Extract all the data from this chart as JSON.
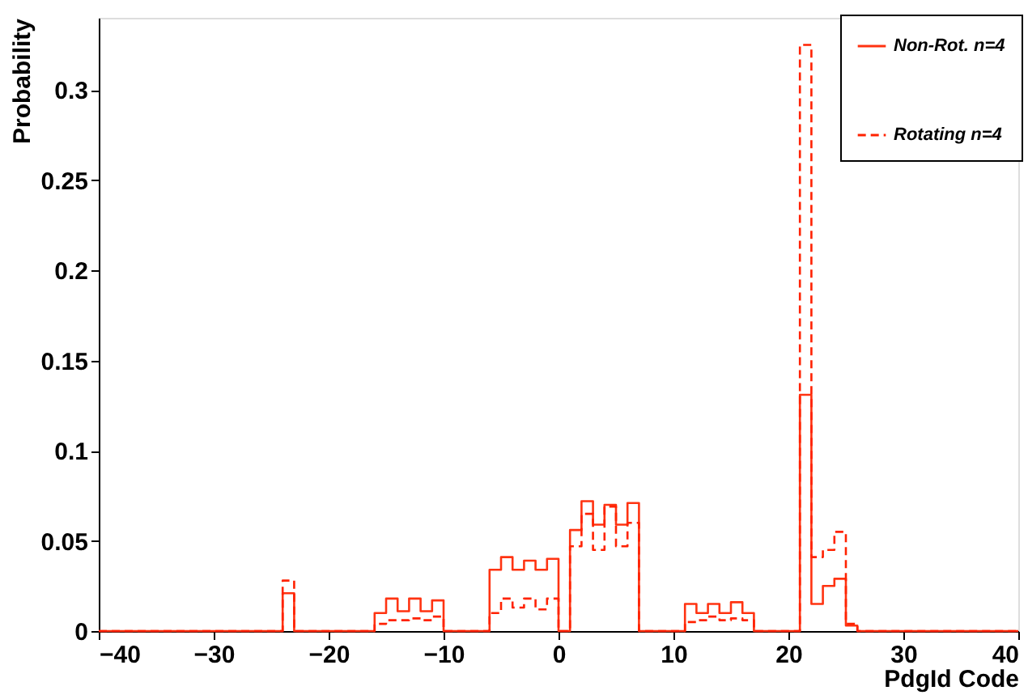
{
  "chart_data": {
    "type": "histogram",
    "xlabel": "PdgId Code",
    "ylabel": "Probability",
    "bins": [
      -40,
      -39,
      -38,
      -37,
      -36,
      -35,
      -34,
      -33,
      -32,
      -31,
      -30,
      -29,
      -28,
      -27,
      -26,
      -25,
      -24,
      -23,
      -22,
      -21,
      -20,
      -19,
      -18,
      -17,
      -16,
      -15,
      -14,
      -13,
      -12,
      -11,
      -10,
      -9,
      -8,
      -7,
      -6,
      -5,
      -4,
      -3,
      -2,
      -1,
      0,
      1,
      2,
      3,
      4,
      5,
      6,
      7,
      8,
      9,
      10,
      11,
      12,
      13,
      14,
      15,
      16,
      17,
      18,
      19,
      20,
      21,
      22,
      23,
      24,
      25,
      26,
      27,
      28,
      29,
      30,
      31,
      32,
      33,
      34,
      35,
      36,
      37,
      38,
      39,
      40
    ],
    "series": [
      {
        "name": "Non-Rot. n=4",
        "color": "#ff3311",
        "line_style": "solid",
        "values": [
          0,
          0,
          0,
          0,
          0,
          0,
          0,
          0,
          0,
          0,
          0,
          0,
          0,
          0,
          0,
          0,
          0.021,
          0,
          0,
          0,
          0,
          0,
          0,
          0,
          0.01,
          0.018,
          0.011,
          0.018,
          0.011,
          0.017,
          0,
          0,
          0,
          0,
          0.034,
          0.041,
          0.034,
          0.039,
          0.034,
          0.04,
          0,
          0.056,
          0.072,
          0.059,
          0.07,
          0.059,
          0.071,
          0,
          0,
          0,
          0,
          0.015,
          0.01,
          0.015,
          0.01,
          0.016,
          0.01,
          0,
          0,
          0,
          0,
          0.131,
          0.015,
          0.025,
          0.029,
          0.003,
          0,
          0,
          0,
          0,
          0,
          0,
          0,
          0,
          0,
          0,
          0,
          0,
          0,
          0
        ]
      },
      {
        "name": "Rotating n=4",
        "color": "#ff2200",
        "line_style": "dashed",
        "values": [
          0,
          0,
          0,
          0,
          0,
          0,
          0,
          0,
          0,
          0,
          0,
          0,
          0,
          0,
          0,
          0,
          0.028,
          0,
          0,
          0,
          0,
          0,
          0,
          0,
          0.004,
          0.006,
          0.006,
          0.007,
          0.006,
          0.008,
          0,
          0,
          0,
          0,
          0.01,
          0.018,
          0.013,
          0.018,
          0.012,
          0.018,
          0,
          0.047,
          0.065,
          0.045,
          0.069,
          0.047,
          0.06,
          0,
          0,
          0,
          0,
          0.005,
          0.006,
          0.008,
          0.006,
          0.007,
          0.006,
          0,
          0,
          0,
          0,
          0.325,
          0.041,
          0.045,
          0.055,
          0.004,
          0,
          0,
          0,
          0,
          0,
          0,
          0,
          0,
          0,
          0,
          0,
          0,
          0,
          0
        ]
      }
    ],
    "xlim": [
      -40,
      40
    ],
    "xticks": [
      -40,
      -30,
      -20,
      -10,
      0,
      10,
      20,
      30,
      40
    ],
    "ylim": [
      0,
      0.34
    ],
    "yticks": [
      0,
      0.05,
      0.1,
      0.15,
      0.2,
      0.25,
      0.3
    ],
    "grid": false,
    "legend": "top right"
  }
}
